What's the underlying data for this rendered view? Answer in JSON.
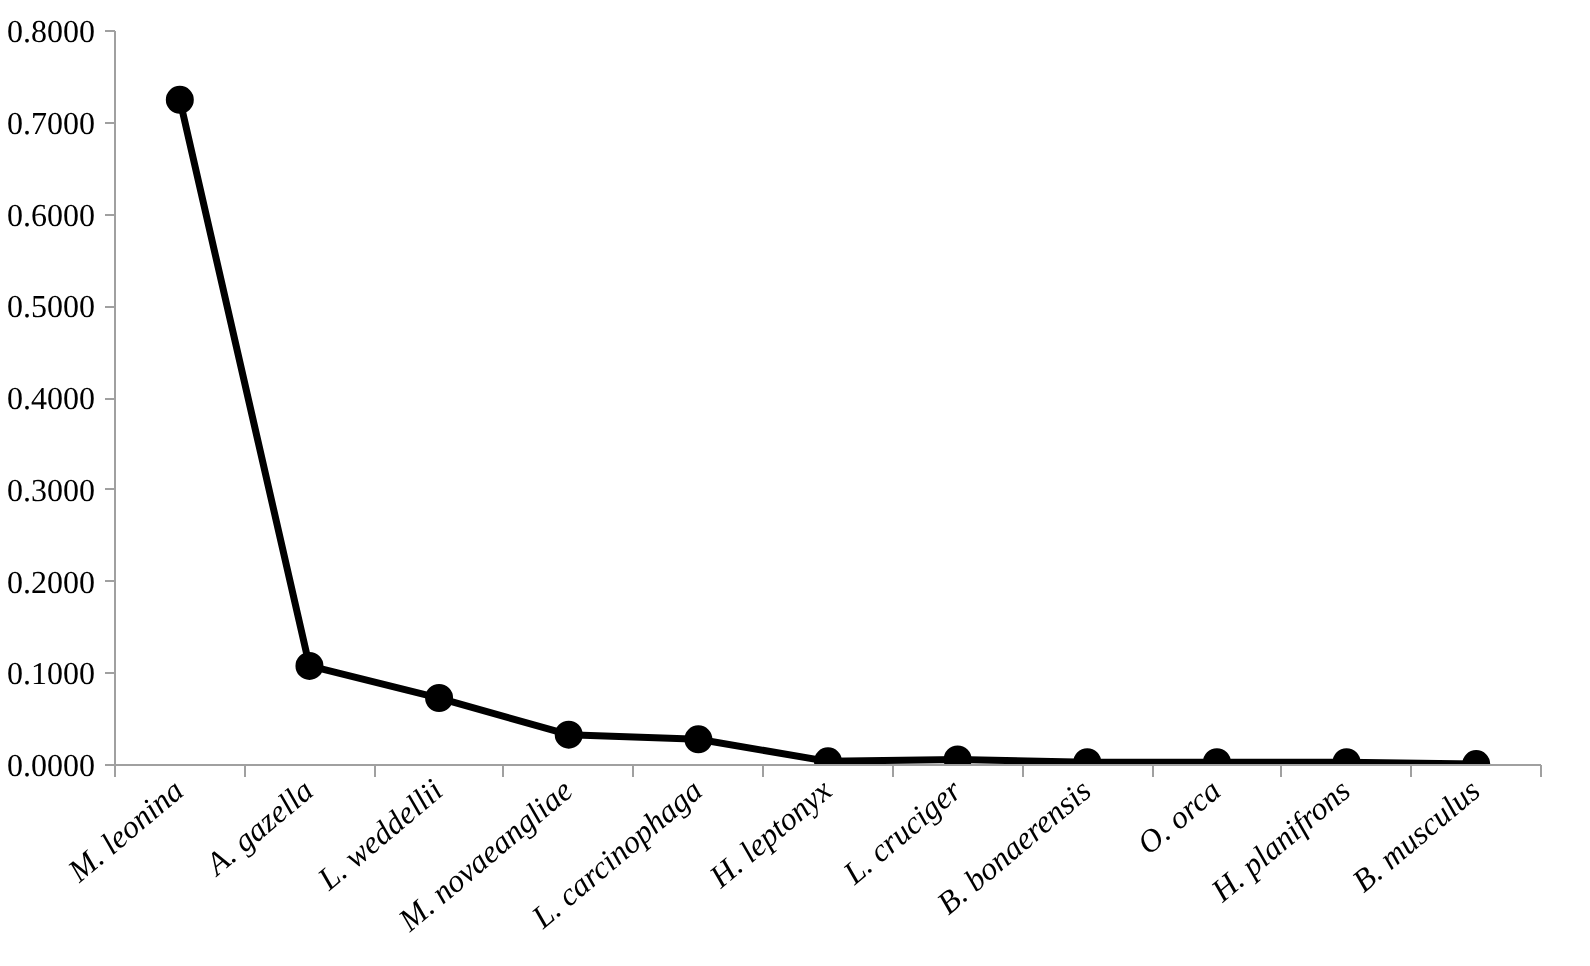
{
  "chart_data": {
    "type": "line",
    "categories": [
      "M. leonina",
      "A. gazella",
      "L. weddellii",
      "M. novaeangliae",
      "L. carcinophaga",
      "H. leptonyx",
      "L. cruciger",
      "B. bonaerensis",
      "O. orca",
      "H. planifrons",
      "B. musculus"
    ],
    "series": [
      {
        "color": "#000000",
        "values": [
          0.725,
          0.108,
          0.073,
          0.033,
          0.028,
          0.004,
          0.006,
          0.003,
          0.003,
          0.003,
          0.001
        ]
      }
    ],
    "ylim": [
      0,
      0.8
    ],
    "yticks": [
      {
        "value": 0,
        "label": "0.0000"
      },
      {
        "value": 0.1,
        "label": "0.1000"
      },
      {
        "value": 0.2,
        "label": "0.2000"
      },
      {
        "value": 0.3,
        "label": "0.3000"
      },
      {
        "value": 0.4,
        "label": "0.4000"
      },
      {
        "value": 0.5,
        "label": "0.5000"
      },
      {
        "value": 0.6,
        "label": "0.6000"
      },
      {
        "value": 0.7,
        "label": "0.7000"
      },
      {
        "value": 0.8,
        "label": "0.8000"
      }
    ],
    "grid": false,
    "marker": "circle",
    "line_style": "solid"
  }
}
